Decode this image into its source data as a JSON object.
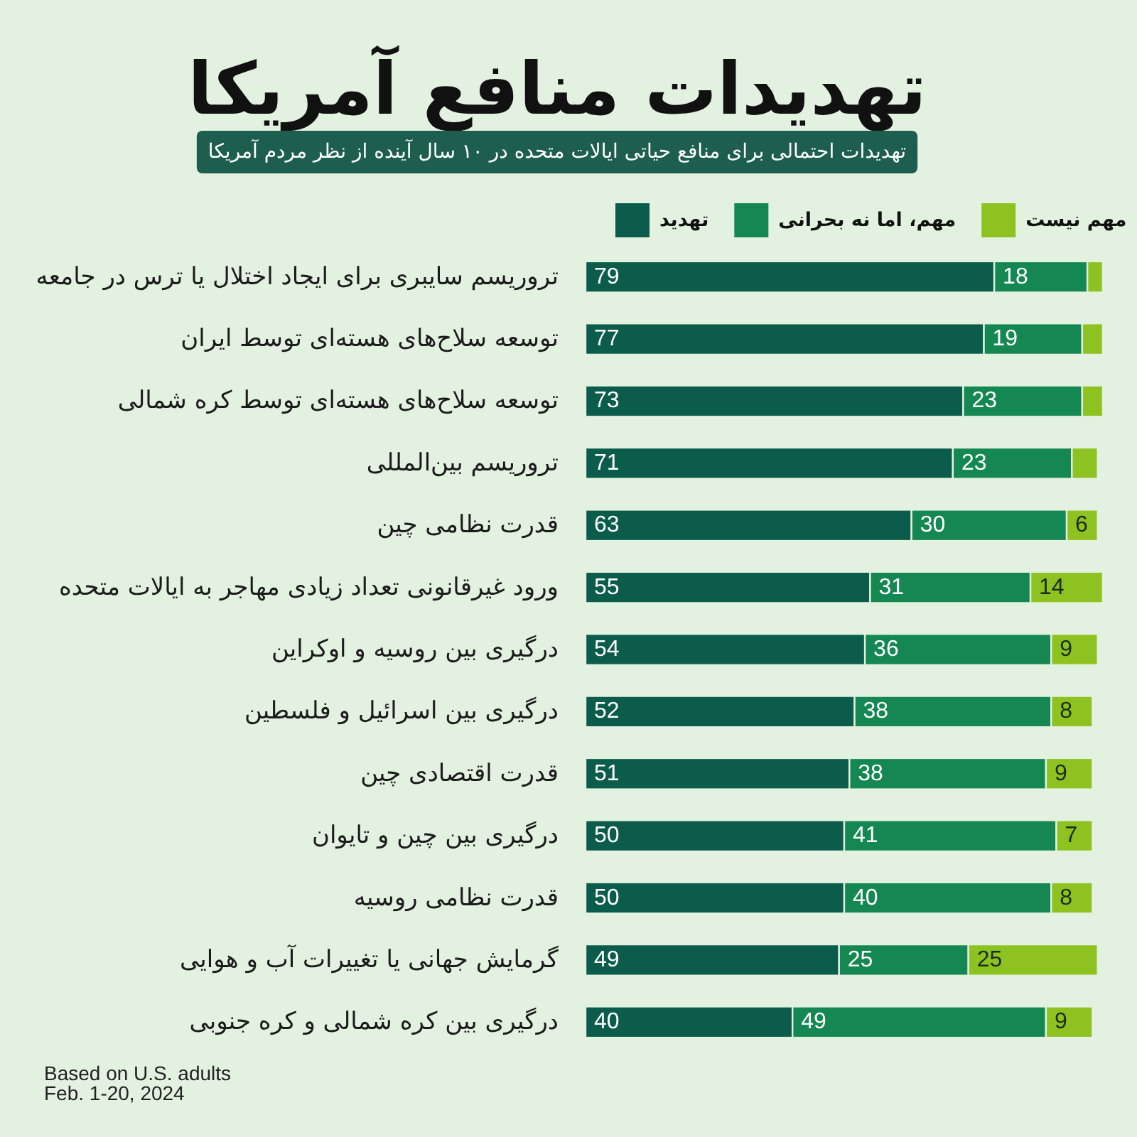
{
  "chart_data": {
    "type": "bar",
    "orientation": "horizontal",
    "stacked": true,
    "title": "تهدیدات منافع آمریکا",
    "subtitle": "تهدیدات احتمالی برای منافع حیاتی ایالات متحده در ۱۰ سال آینده از نظر مردم آمریکا",
    "categories": [
      "تروریسم سایبری برای ایجاد اختلال یا ترس در جامعه",
      "توسعه سلاح‌های هسته‌ای توسط ایران",
      "توسعه سلاح‌های هسته‌ای توسط کره شمالی",
      "تروریسم بین‌المللی",
      "قدرت نظامی چین",
      "ورود غیرقانونی تعداد زیادی مهاجر به ایالات متحده",
      "درگیری بین روسیه و اوکراین",
      "درگیری بین اسرائیل و فلسطین",
      "قدرت اقتصادی چین",
      "درگیری بین چین و تایوان",
      "قدرت نظامی روسیه",
      "گرمایش جهانی یا تغییرات آب و هوایی",
      "درگیری بین کره شمالی و کره جنوبی"
    ],
    "series": [
      {
        "name": "تهدید",
        "color": "#0b5c4b",
        "values": [
          79,
          77,
          73,
          71,
          63,
          55,
          54,
          52,
          51,
          50,
          50,
          49,
          40
        ],
        "value_labels": [
          "79",
          "77",
          "73",
          "71",
          "63",
          "55",
          "54",
          "52",
          "51",
          "50",
          "50",
          "49",
          "40"
        ]
      },
      {
        "name": "مهم، اما نه بحرانی",
        "color": "#148752",
        "values": [
          18,
          19,
          23,
          23,
          30,
          31,
          36,
          38,
          38,
          41,
          40,
          25,
          49
        ],
        "value_labels": [
          "18",
          "19",
          "23",
          "23",
          "30",
          "31",
          "36",
          "38",
          "38",
          "41",
          "40",
          "25",
          "49"
        ]
      },
      {
        "name": "مهم نیست",
        "color": "#8dc220",
        "values": [
          3,
          4,
          4,
          5,
          6,
          14,
          9,
          8,
          9,
          7,
          8,
          25,
          9
        ],
        "value_labels": [
          null,
          null,
          null,
          null,
          "6",
          "14",
          "9",
          "8",
          "9",
          "7",
          "8",
          "25",
          "9"
        ]
      }
    ],
    "legend": "top",
    "annotations": [
      "Based on U.S. adults",
      "Feb. 1-20, 2024"
    ]
  }
}
